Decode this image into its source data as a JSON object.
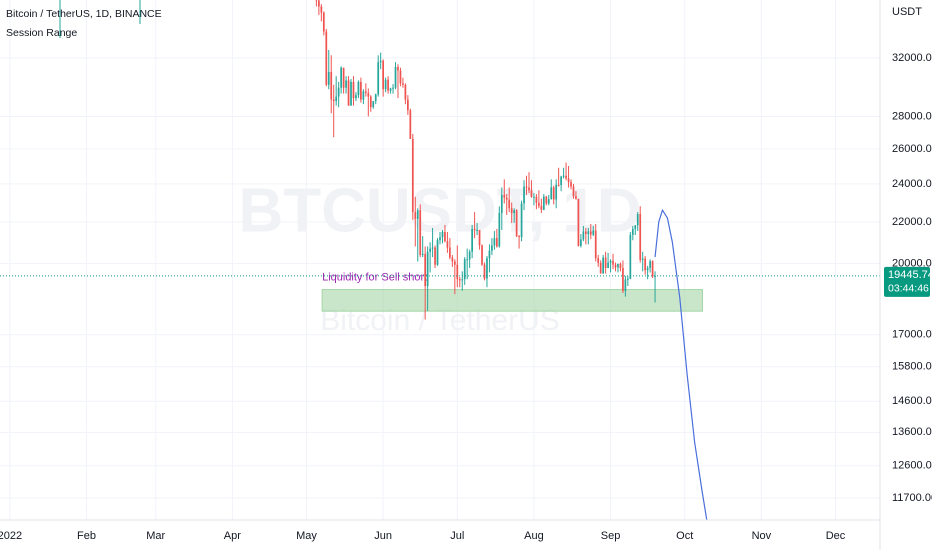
{
  "chart_data": {
    "type": "candlestick",
    "title": "Bitcoin / TetherUS, 1D, BINANCE",
    "indicator": "Session Range",
    "watermark": "BTCUSDT, 1D",
    "watermark_sub": "Bitcoin / TetherUS",
    "currency": "USDT",
    "log_scale": true,
    "grid": true,
    "up_color": "#26a69a",
    "down_color": "#ef5350",
    "xlim": [
      -4,
      352
    ],
    "xticks": [
      {
        "value": 0,
        "label": "2022"
      },
      {
        "value": 31,
        "label": "Feb"
      },
      {
        "value": 59,
        "label": "Mar"
      },
      {
        "value": 90,
        "label": "Apr"
      },
      {
        "value": 120,
        "label": "May"
      },
      {
        "value": 151,
        "label": "Jun"
      },
      {
        "value": 181,
        "label": "Jul"
      },
      {
        "value": 212,
        "label": "Aug"
      },
      {
        "value": 243,
        "label": "Sep"
      },
      {
        "value": 273,
        "label": "Oct"
      },
      {
        "value": 304,
        "label": "Nov"
      },
      {
        "value": 334,
        "label": "Dec"
      }
    ],
    "ylim": [
      11130,
      36540
    ],
    "yticks": [
      {
        "value": 32000,
        "label": "32000.00"
      },
      {
        "value": 28000,
        "label": "28000.00"
      },
      {
        "value": 26000,
        "label": "26000.00"
      },
      {
        "value": 24000,
        "label": "24000.00"
      },
      {
        "value": 22000,
        "label": "22000.00"
      },
      {
        "value": 20000,
        "label": "20000.00"
      },
      {
        "value": 17000,
        "label": "17000.00"
      },
      {
        "value": 15800,
        "label": "15800.00"
      },
      {
        "value": 14600,
        "label": "14600.00"
      },
      {
        "value": 13600,
        "label": "13600.00"
      },
      {
        "value": 12600,
        "label": "12600.00"
      },
      {
        "value": 11700,
        "label": "11700.00"
      }
    ],
    "last_price": 19445.74,
    "last_price_color": "#089981",
    "countdown": "03:44:46",
    "zone": {
      "label": "Liquidity for Sell short",
      "label_color": "#9c27b0",
      "color": "#a5d6a7",
      "x": [
        126.3,
        280.2
      ],
      "y": [
        17940,
        18850
      ]
    },
    "projection": {
      "color": "#4a6fdc",
      "x": [
        261,
        262.5,
        264,
        266,
        268,
        271,
        274,
        277,
        280,
        282
      ],
      "values": [
        20300,
        22000,
        22600,
        22200,
        21000,
        18500,
        15500,
        13300,
        11900,
        11100
      ]
    },
    "candles": [
      [
        124,
        39700,
        39800,
        36000,
        36500
      ],
      [
        125,
        36500,
        36700,
        35300,
        36000
      ],
      [
        126,
        36000,
        36200,
        34800,
        35500
      ],
      [
        127,
        35500,
        35600,
        33700,
        34000
      ],
      [
        128,
        34000,
        34200,
        30000,
        30100
      ],
      [
        129,
        30100,
        32600,
        29800,
        31000
      ],
      [
        130,
        31000,
        32200,
        28200,
        29100
      ],
      [
        131,
        29100,
        30100,
        26700,
        29000
      ],
      [
        132,
        29000,
        30700,
        28700,
        29300
      ],
      [
        133,
        29300,
        30300,
        28600,
        29900
      ],
      [
        134,
        29900,
        31400,
        29500,
        31300
      ],
      [
        135,
        31300,
        31300,
        29500,
        29900
      ],
      [
        136,
        29900,
        30700,
        29500,
        30400
      ],
      [
        137,
        30400,
        30700,
        28700,
        28700
      ],
      [
        138,
        28700,
        30500,
        28700,
        30300
      ],
      [
        139,
        30300,
        30700,
        28700,
        29200
      ],
      [
        140,
        29200,
        29600,
        29000,
        29400
      ],
      [
        141,
        29400,
        30400,
        29200,
        30300
      ],
      [
        142,
        30300,
        30600,
        28900,
        29100
      ],
      [
        143,
        29100,
        29800,
        28800,
        29650
      ],
      [
        144,
        29650,
        30200,
        29300,
        29550
      ],
      [
        145,
        29550,
        29850,
        28000,
        29300
      ],
      [
        146,
        29300,
        29400,
        28300,
        28600
      ],
      [
        147,
        28600,
        29000,
        28500,
        29000
      ],
      [
        148,
        29000,
        29500,
        28800,
        29450
      ],
      [
        149,
        29450,
        32200,
        29300,
        31700
      ],
      [
        150,
        31700,
        32400,
        31200,
        31800
      ],
      [
        151,
        31800,
        31900,
        29300,
        29800
      ],
      [
        152,
        29800,
        30600,
        29600,
        30450
      ],
      [
        153,
        30450,
        30700,
        29500,
        29700
      ],
      [
        154,
        29700,
        29900,
        29500,
        29850
      ],
      [
        155,
        29850,
        30150,
        29500,
        29900
      ],
      [
        156,
        29900,
        31700,
        29800,
        31350
      ],
      [
        157,
        31350,
        31550,
        29200,
        31100
      ],
      [
        158,
        31100,
        31300,
        30000,
        30200
      ],
      [
        159,
        30200,
        30600,
        29900,
        30100
      ],
      [
        160,
        30100,
        30200,
        28800,
        29100
      ],
      [
        161,
        29100,
        29400,
        28100,
        28400
      ],
      [
        162,
        28400,
        28500,
        26600,
        26600
      ],
      [
        163,
        26600,
        26900,
        22100,
        22500
      ],
      [
        164,
        22500,
        23300,
        20800,
        22150
      ],
      [
        165,
        22150,
        22700,
        20100,
        22600
      ],
      [
        166,
        22600,
        22900,
        20300,
        20400
      ],
      [
        167,
        20400,
        21300,
        20300,
        20450
      ],
      [
        168,
        20450,
        20800,
        17600,
        19000
      ],
      [
        169,
        19000,
        20800,
        17950,
        20550
      ],
      [
        170,
        20550,
        21000,
        19600,
        20700
      ],
      [
        171,
        20700,
        21700,
        20300,
        20750
      ],
      [
        172,
        20750,
        20850,
        19800,
        19950
      ],
      [
        173,
        19950,
        21200,
        19900,
        21100
      ],
      [
        174,
        21100,
        21500,
        20900,
        21250
      ],
      [
        175,
        21250,
        21600,
        20950,
        21500
      ],
      [
        176,
        21500,
        21850,
        21000,
        21050
      ],
      [
        177,
        21050,
        21500,
        20500,
        20750
      ],
      [
        178,
        20750,
        21200,
        20200,
        20280
      ],
      [
        179,
        20280,
        20400,
        19850,
        20100
      ],
      [
        180,
        20100,
        20200,
        18650,
        19950
      ],
      [
        181,
        19950,
        20850,
        18950,
        19300
      ],
      [
        182,
        19300,
        19400,
        18950,
        19250
      ],
      [
        183,
        19250,
        19650,
        18800,
        19300
      ],
      [
        184,
        19300,
        20300,
        19050,
        20200
      ],
      [
        185,
        20200,
        20700,
        19300,
        20200
      ],
      [
        186,
        20200,
        20650,
        19800,
        20550
      ],
      [
        187,
        20550,
        21850,
        20250,
        21650
      ],
      [
        188,
        21650,
        22500,
        21200,
        21600
      ],
      [
        189,
        21600,
        21950,
        21350,
        21600
      ],
      [
        190,
        21600,
        21600,
        20650,
        20850
      ],
      [
        191,
        20850,
        20900,
        19900,
        19950
      ],
      [
        192,
        19950,
        20050,
        19250,
        19330
      ],
      [
        193,
        19330,
        20350,
        18950,
        20250
      ],
      [
        194,
        20250,
        20900,
        19600,
        20600
      ],
      [
        195,
        20600,
        21200,
        20400,
        20850
      ],
      [
        196,
        20850,
        21550,
        20650,
        21200
      ],
      [
        197,
        21200,
        21650,
        20750,
        20800
      ],
      [
        198,
        20800,
        22800,
        20750,
        22450
      ],
      [
        199,
        22450,
        23800,
        21600,
        23400
      ],
      [
        200,
        23400,
        24250,
        22950,
        23250
      ],
      [
        201,
        23250,
        23450,
        22350,
        23150
      ],
      [
        202,
        23150,
        23800,
        22500,
        22700
      ],
      [
        203,
        22700,
        23000,
        21950,
        22450
      ],
      [
        204,
        22450,
        22700,
        21950,
        22600
      ],
      [
        205,
        22600,
        22650,
        21250,
        21300
      ],
      [
        206,
        21300,
        21350,
        20700,
        21250
      ],
      [
        207,
        21250,
        23100,
        21050,
        22950
      ],
      [
        208,
        22950,
        24200,
        22600,
        23850
      ],
      [
        209,
        23850,
        24450,
        23400,
        23800
      ],
      [
        210,
        23800,
        24650,
        23500,
        23650
      ],
      [
        211,
        23650,
        24200,
        23250,
        23300
      ],
      [
        212,
        23300,
        23500,
        22850,
        23300
      ],
      [
        213,
        23300,
        23450,
        22650,
        22980
      ],
      [
        214,
        22980,
        23650,
        22700,
        22820
      ],
      [
        215,
        22820,
        23200,
        22450,
        22620
      ],
      [
        216,
        22620,
        23450,
        22600,
        23310
      ],
      [
        217,
        23310,
        23350,
        22850,
        22950
      ],
      [
        218,
        22950,
        23400,
        22850,
        23180
      ],
      [
        219,
        23180,
        24250,
        23150,
        23810
      ],
      [
        220,
        23810,
        23900,
        22900,
        23160
      ],
      [
        221,
        23160,
        24250,
        22700,
        23950
      ],
      [
        222,
        23950,
        24900,
        23850,
        23940
      ],
      [
        223,
        23940,
        24450,
        23600,
        24400
      ],
      [
        224,
        24400,
        24900,
        24300,
        24450
      ],
      [
        225,
        24450,
        25200,
        24200,
        24300
      ],
      [
        226,
        24300,
        25000,
        23800,
        24100
      ],
      [
        227,
        24100,
        24250,
        23700,
        23850
      ],
      [
        228,
        23850,
        24000,
        23200,
        23340
      ],
      [
        229,
        23340,
        23600,
        23150,
        23190
      ],
      [
        230,
        23190,
        23200,
        20800,
        20830
      ],
      [
        231,
        20830,
        21400,
        20750,
        21140
      ],
      [
        232,
        21140,
        21800,
        21050,
        21520
      ],
      [
        233,
        21520,
        21700,
        20900,
        21400
      ],
      [
        234,
        21400,
        21700,
        20900,
        21530
      ],
      [
        235,
        21530,
        21900,
        21150,
        21370
      ],
      [
        236,
        21370,
        21800,
        21300,
        21570
      ],
      [
        237,
        21570,
        21900,
        20100,
        20250
      ],
      [
        238,
        20250,
        20400,
        19850,
        20030
      ],
      [
        239,
        20030,
        20150,
        19550,
        19550
      ],
      [
        240,
        19550,
        20400,
        19550,
        20280
      ],
      [
        241,
        20280,
        20550,
        19550,
        19800
      ],
      [
        242,
        19800,
        20500,
        19800,
        20050
      ],
      [
        243,
        20050,
        20200,
        19600,
        20130
      ],
      [
        244,
        20130,
        20450,
        19750,
        19950
      ],
      [
        245,
        19950,
        20050,
        19650,
        19830
      ],
      [
        246,
        19830,
        20000,
        19600,
        19990
      ],
      [
        247,
        19990,
        20050,
        19650,
        19800
      ],
      [
        248,
        19800,
        20150,
        18700,
        18790
      ],
      [
        249,
        18790,
        19450,
        18550,
        19290
      ],
      [
        250,
        19290,
        19450,
        19000,
        19320
      ],
      [
        251,
        19320,
        21500,
        19300,
        21360
      ],
      [
        252,
        21360,
        21800,
        21100,
        21650
      ],
      [
        253,
        21650,
        21850,
        21350,
        21830
      ],
      [
        254,
        21830,
        22500,
        21550,
        22400
      ],
      [
        255,
        22400,
        22800,
        20050,
        20170
      ],
      [
        256,
        20170,
        20550,
        19650,
        20230
      ],
      [
        257,
        20230,
        20350,
        19500,
        19700
      ],
      [
        258,
        19700,
        19900,
        19300,
        19800
      ],
      [
        259,
        19800,
        20200,
        19600,
        20110
      ],
      [
        260,
        20110,
        20150,
        19350,
        19420
      ],
      [
        261,
        19420,
        19650,
        18300,
        19445.74
      ]
    ]
  }
}
